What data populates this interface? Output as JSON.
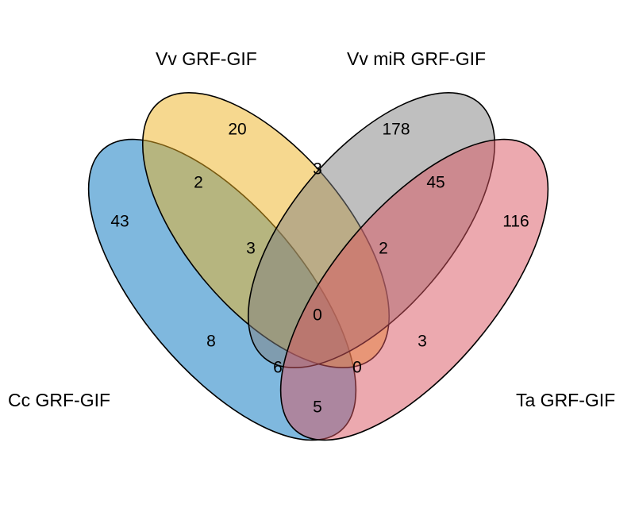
{
  "sets": [
    {
      "id": "cc",
      "label": "Cc GRF-GIF",
      "color": "#0072BD"
    },
    {
      "id": "vv",
      "label": "Vv GRF-GIF",
      "color": "#EDB120"
    },
    {
      "id": "vvmir",
      "label": "Vv miR GRF-GIF",
      "color": "#808080"
    },
    {
      "id": "ta",
      "label": "Ta GRF-GIF",
      "color": "#D95360"
    }
  ],
  "regions": {
    "cc_only": "43",
    "vv_only": "20",
    "vvmir_only": "178",
    "ta_only": "116",
    "cc_vv": "2",
    "vv_vvmir": "3",
    "vvmir_ta": "45",
    "cc_vv_vvmir": "3",
    "vv_vvmir_ta": "2",
    "cc_vvmir": "8",
    "vv_ta": "3",
    "all_four": "0",
    "cc_vvmir_ta": "6",
    "cc_vv_ta": "0",
    "cc_ta": "5"
  }
}
